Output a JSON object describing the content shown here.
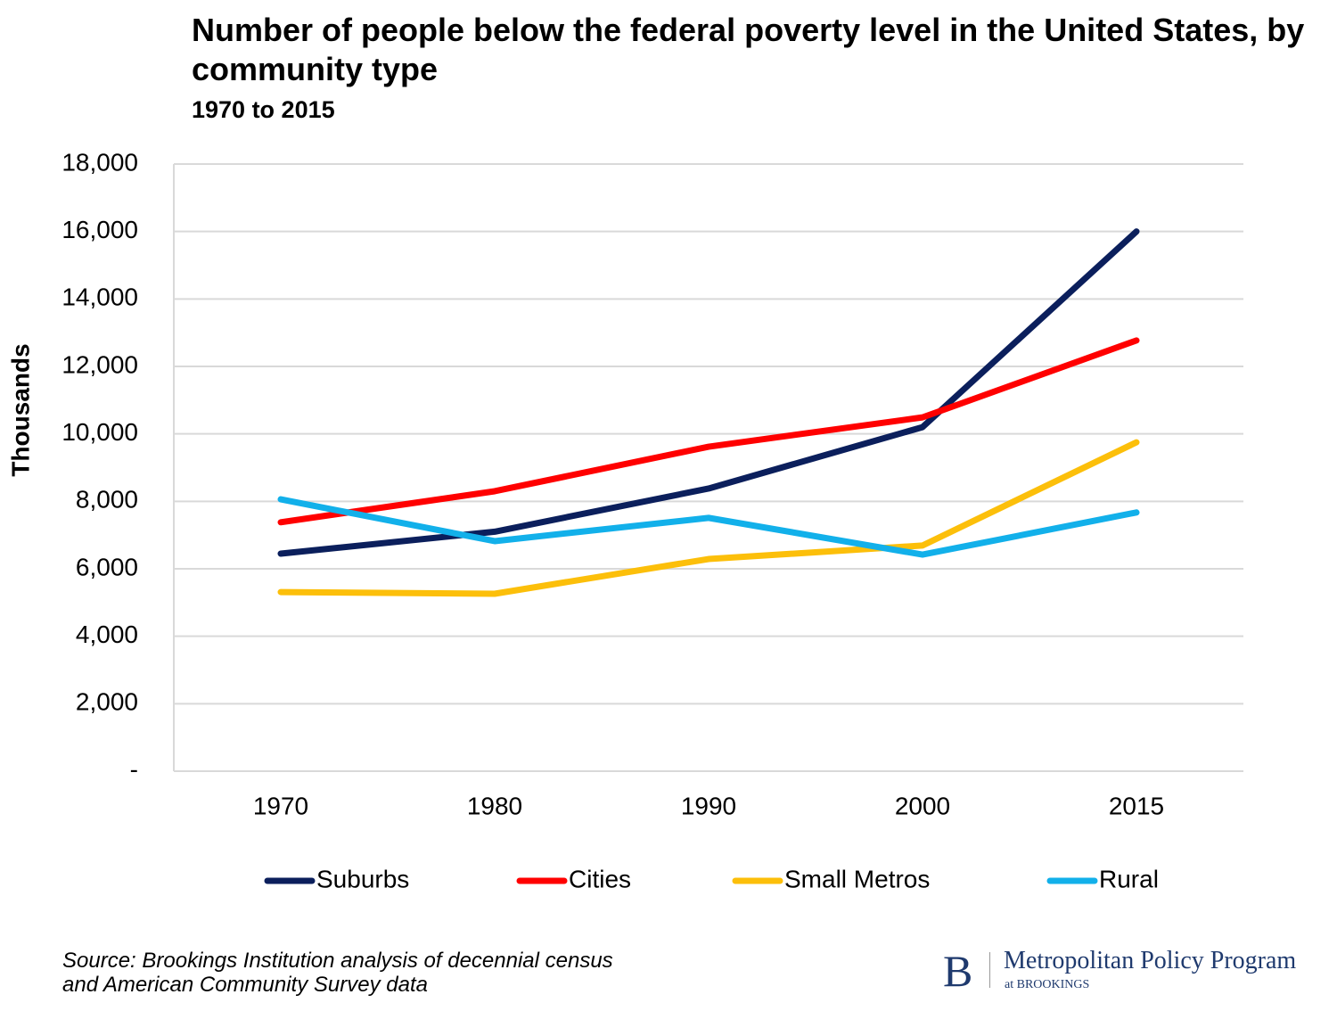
{
  "chart_data": {
    "type": "line",
    "title": "Number of people below the federal poverty level in the United States, by community type",
    "subtitle": "1970 to 2015",
    "y_label": "Thousands",
    "categories": [
      "1970",
      "1980",
      "1990",
      "2000",
      "2015"
    ],
    "series": [
      {
        "name": "Suburbs",
        "color": "#0b1f5c",
        "values": [
          6450,
          7100,
          8380,
          10200,
          16000
        ]
      },
      {
        "name": "Cities",
        "color": "#ff0000",
        "values": [
          7380,
          8300,
          9620,
          10490,
          12770
        ]
      },
      {
        "name": "Small Metros",
        "color": "#fcbf0a",
        "values": [
          5310,
          5260,
          6290,
          6690,
          9750
        ]
      },
      {
        "name": "Rural",
        "color": "#12b0ea",
        "values": [
          8060,
          6820,
          7510,
          6420,
          7670
        ]
      }
    ],
    "ylim": [
      0,
      18000
    ],
    "yticks": [
      {
        "value": 0,
        "label": "-"
      },
      {
        "value": 2000,
        "label": "2,000"
      },
      {
        "value": 4000,
        "label": "4,000"
      },
      {
        "value": 6000,
        "label": "6,000"
      },
      {
        "value": 8000,
        "label": "8,000"
      },
      {
        "value": 10000,
        "label": "10,000"
      },
      {
        "value": 12000,
        "label": "12,000"
      },
      {
        "value": 14000,
        "label": "14,000"
      },
      {
        "value": 16000,
        "label": "16,000"
      },
      {
        "value": 18000,
        "label": "18,000"
      }
    ],
    "grid": true,
    "legend": "bottom",
    "source": "Source: Brookings Institution analysis of decennial census and American Community Survey data"
  },
  "logo": {
    "letter": "B",
    "name": "Metropolitan Policy Program",
    "org": "at BROOKINGS"
  }
}
